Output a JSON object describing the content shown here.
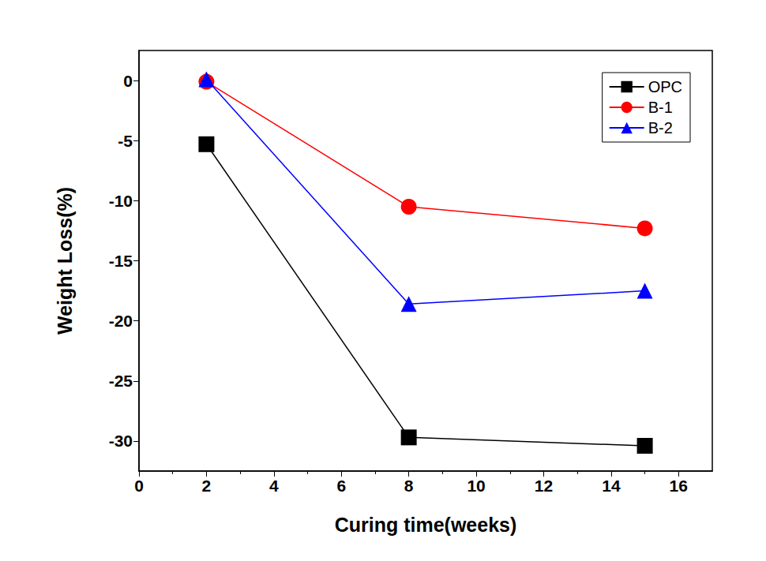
{
  "chart_data": {
    "type": "line",
    "x_label": "Curing time(weeks)",
    "y_label": "Weight Loss(%)",
    "x": [
      2,
      8,
      15
    ],
    "series": [
      {
        "name": "OPC",
        "color": "#000000",
        "marker": "square",
        "values": [
          -5.3,
          -29.7,
          -30.4
        ]
      },
      {
        "name": "B-1",
        "color": "#ff0000",
        "marker": "circle",
        "values": [
          -0.1,
          -10.5,
          -12.3
        ]
      },
      {
        "name": "B-2",
        "color": "#0000ff",
        "marker": "triangle",
        "values": [
          0.1,
          -18.6,
          -17.5
        ]
      }
    ],
    "xlim": [
      0,
      17
    ],
    "xticks": [
      0,
      2,
      4,
      6,
      8,
      10,
      12,
      14,
      16
    ],
    "ylim": [
      -32.5,
      2.5
    ],
    "yticks": [
      -30,
      -25,
      -20,
      -15,
      -10,
      -5,
      0
    ],
    "grid": false,
    "legend": "upper right"
  }
}
